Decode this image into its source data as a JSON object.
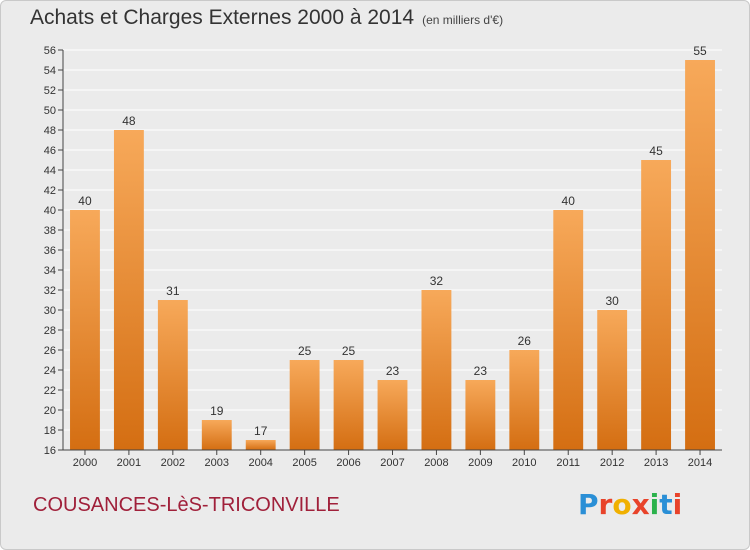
{
  "title": "Achats et Charges Externes 2000 à 2014",
  "subtitle": "(en milliers d'€)",
  "commune": "COUSANCES-LèS-TRICONVILLE",
  "logo_text": "Proxiti",
  "logo_colors": [
    "#2a8fd6",
    "#e8432a",
    "#f0b000",
    "#e8432a",
    "#2bb24c",
    "#2a8fd6",
    "#e8432a"
  ],
  "colors": {
    "bar_light": "#f7a95a",
    "bar_dark": "#d46e12",
    "commune": "#a0203a",
    "background": "#ebebeb"
  },
  "chart_data": {
    "type": "bar",
    "title": "Achats et Charges Externes 2000 à 2014",
    "subtitle": "(en milliers d'€)",
    "categories": [
      "2000",
      "2001",
      "2002",
      "2003",
      "2004",
      "2005",
      "2006",
      "2007",
      "2008",
      "2009",
      "2010",
      "2011",
      "2012",
      "2013",
      "2014"
    ],
    "values": [
      40,
      48,
      31,
      19,
      17,
      25,
      25,
      23,
      32,
      23,
      26,
      40,
      30,
      45,
      55
    ],
    "ylim": [
      16,
      56
    ],
    "ytick_step": 2,
    "grid": true,
    "xlabel": "",
    "ylabel": ""
  }
}
